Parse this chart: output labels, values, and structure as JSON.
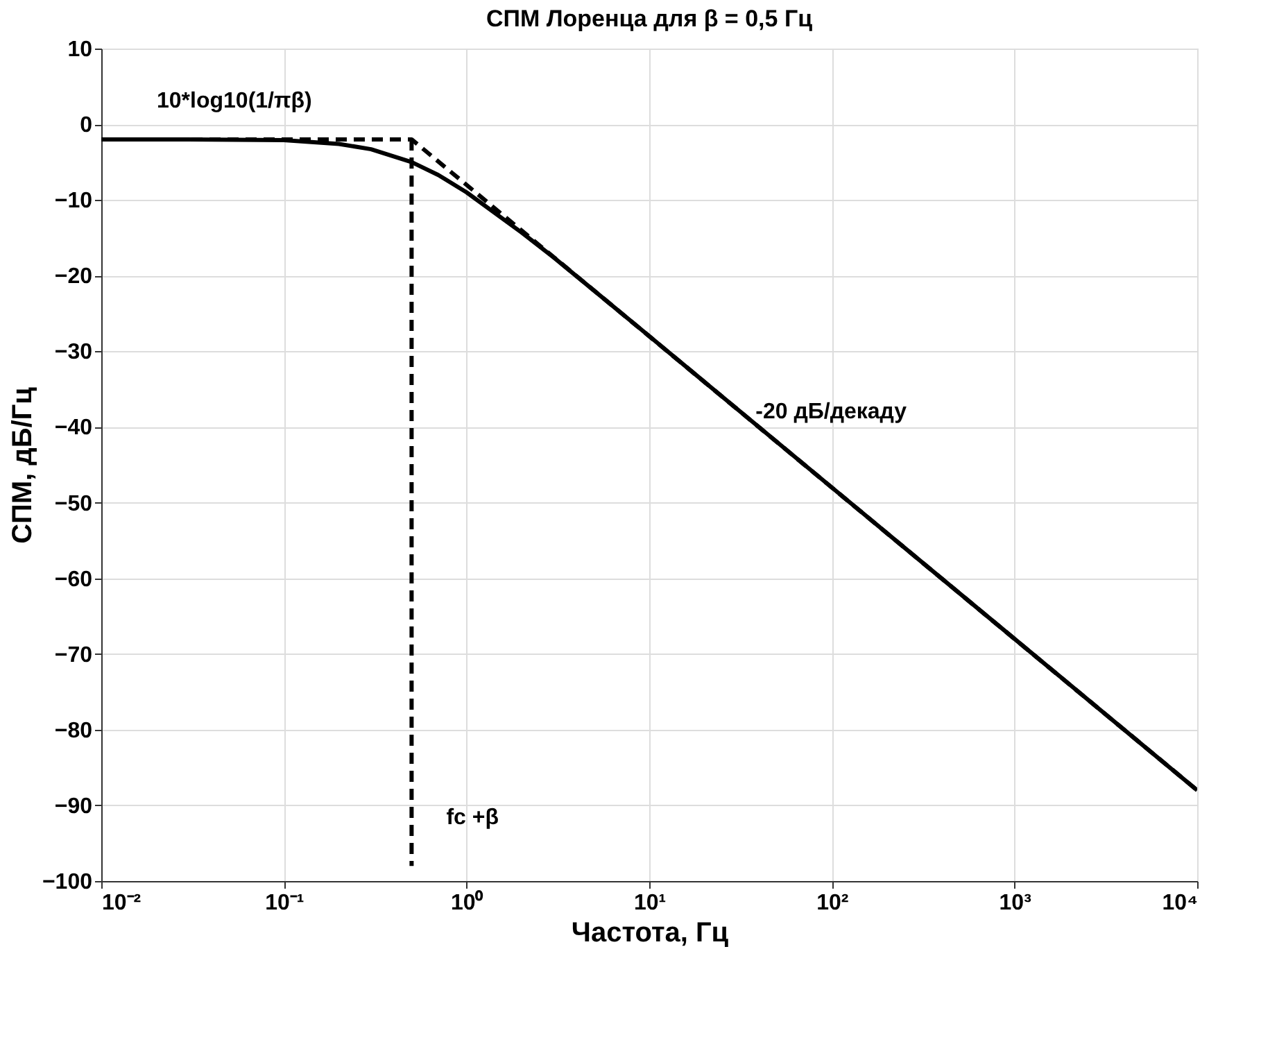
{
  "chart_data": {
    "type": "line",
    "title": "СПМ Лоренца для β = 0,5 Гц",
    "xlabel": "Частота, Гц",
    "ylabel": "СПМ, дБ/Гц",
    "log": "x",
    "grid": true,
    "xlim": [
      0.01,
      10000
    ],
    "xticks": [
      {
        "value": 0.01,
        "label": "10⁻²"
      },
      {
        "value": 0.1,
        "label": "10⁻¹"
      },
      {
        "value": 1,
        "label": "10⁰"
      },
      {
        "value": 10,
        "label": "10¹"
      },
      {
        "value": 100,
        "label": "10²"
      },
      {
        "value": 1000,
        "label": "10³"
      },
      {
        "value": 10000,
        "label": "10⁴"
      }
    ],
    "ylim": [
      -100,
      10
    ],
    "yticks": [
      -100,
      -90,
      -80,
      -70,
      -60,
      -50,
      -40,
      -30,
      -20,
      -10,
      0,
      10
    ],
    "series": [
      {
        "color": "#000000",
        "line_style": "solid",
        "x": [
          0.01,
          0.03,
          0.1,
          0.2,
          0.3,
          0.5,
          0.7,
          1,
          2,
          3,
          5,
          10,
          100,
          1000,
          10000
        ],
        "values": [
          -2.0,
          -2.0,
          -2.1,
          -2.6,
          -3.3,
          -5.0,
          -6.7,
          -9.0,
          -14.3,
          -17.6,
          -22.0,
          -28.0,
          -48.0,
          -68.0,
          -88.0
        ]
      },
      {
        "color": "#000000",
        "line_style": "dashed",
        "x": [
          0.01,
          0.5,
          10000
        ],
        "values": [
          -2.0,
          -2.0,
          -88.0
        ]
      },
      {
        "color": "#000000",
        "line_style": "dashed",
        "x": [
          0.5,
          0.5
        ],
        "values": [
          -2.0,
          -98.0
        ]
      }
    ],
    "annotations": [
      {
        "text": "10*log10(1/πβ)",
        "x": 0.01,
        "y": -2.0
      },
      {
        "text": "fc +β",
        "x": 0.5,
        "y": -98.0
      },
      {
        "text": "-20 дБ/декаду",
        "x": 100,
        "y": -48.0
      }
    ]
  }
}
